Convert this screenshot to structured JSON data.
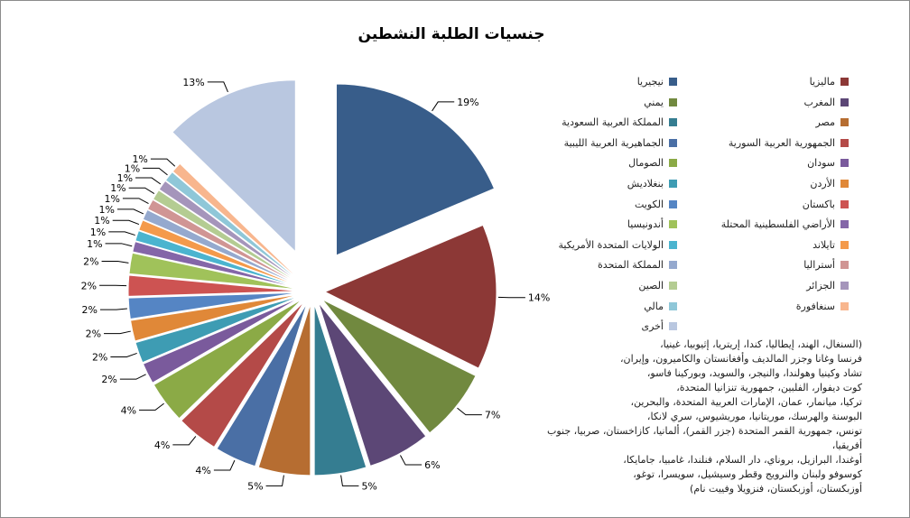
{
  "chart_data": {
    "type": "pie",
    "title": "جنسيات الطلبة النشطين",
    "slices": [
      {
        "label": "نيجيريا",
        "value": 19,
        "display": "19%",
        "color": "#385D8A"
      },
      {
        "label": "ماليزيا",
        "value": 14,
        "display": "14%",
        "color": "#8C3836"
      },
      {
        "label": "يمني",
        "value": 7,
        "display": "7%",
        "color": "#71893F"
      },
      {
        "label": "المغرب",
        "value": 6,
        "display": "6%",
        "color": "#5C4776"
      },
      {
        "label": "المملكة العربية السعودية",
        "value": 5,
        "display": "5%",
        "color": "#357D91"
      },
      {
        "label": "مصر",
        "value": 5,
        "display": "5%",
        "color": "#B66D31"
      },
      {
        "label": "الجماهيرية العربية الليبية",
        "value": 4,
        "display": "4%",
        "color": "#4A6FA5"
      },
      {
        "label": "الجمهورية العربية السورية",
        "value": 4,
        "display": "4%",
        "color": "#B44A48"
      },
      {
        "label": "الصومال",
        "value": 4,
        "display": "4%",
        "color": "#8BAA46"
      },
      {
        "label": "سودان",
        "value": 2,
        "display": "2%",
        "color": "#7A5A9C"
      },
      {
        "label": "بنغلاديش",
        "value": 2,
        "display": "2%",
        "color": "#3E9CB3"
      },
      {
        "label": "الأردن",
        "value": 2,
        "display": "2%",
        "color": "#E08838"
      },
      {
        "label": "الكويت",
        "value": 2,
        "display": "2%",
        "color": "#5585C4"
      },
      {
        "label": "باكستان",
        "value": 2,
        "display": "2%",
        "color": "#CD5352"
      },
      {
        "label": "أندونيسيا",
        "value": 2,
        "display": "2%",
        "color": "#A0C25A"
      },
      {
        "label": "الأراضي الفلسطينية المحتلة",
        "value": 1,
        "display": "1%",
        "color": "#8466A8"
      },
      {
        "label": "الولايات المتحدة الأمريكية",
        "value": 1,
        "display": "1%",
        "color": "#4BB4CF"
      },
      {
        "label": "تايلاند",
        "value": 1,
        "display": "1%",
        "color": "#F49A4B"
      },
      {
        "label": "المملكة المتحدة",
        "value": 1,
        "display": "1%",
        "color": "#95A9CE"
      },
      {
        "label": "أستراليا",
        "value": 1,
        "display": "1%",
        "color": "#D09594"
      },
      {
        "label": "الصين",
        "value": 1,
        "display": "1%",
        "color": "#B4CC92"
      },
      {
        "label": "الجزائر",
        "value": 1,
        "display": "1%",
        "color": "#A595BB"
      },
      {
        "label": "مالي",
        "value": 1,
        "display": "1%",
        "color": "#8FC7D8"
      },
      {
        "label": "سنغافورة",
        "value": 1,
        "display": "1%",
        "color": "#F8B68E"
      },
      {
        "label": "أخرى",
        "value": 13,
        "display": "13%",
        "color": "#B9C7E0"
      }
    ],
    "legend_position": "right",
    "note": "(السنغال، الهند، إيطاليا، كندا، إريتريا، إثيوبيا، غينيا،\nفرنسا وغانا وجزر المالديف وأفغانستان والكاميرون، وإيران،\nتشاد وكينيا وهولندا، والنيجر، والسويد، وبوركينا فاسو،\nكوت ديفوار، الفلبين، جمهورية تنزانيا المتحدة،\nتركيا، ميانمار، عمان، الإمارات العربية المتحدة، والبحرين،\nالبوسنة والهرسك، موريتانيا، موريشيوس، سري لانكا،\nتونس، جمهورية القمر المتحدة (جزر القمر)، ألمانيا، كازاخستان، صربيا، جنوب أفريقيا،\nأوغندا، البرازيل، بروناي، دار السلام، فنلندا، غامبيا، جامايكا،\nكوسوفو ولبنان والنرويج وقطر وسيشيل، سويسرا، توغو،\nأوزبكستان، أوزبكستان، فنزويلا وفييت نام)"
  }
}
